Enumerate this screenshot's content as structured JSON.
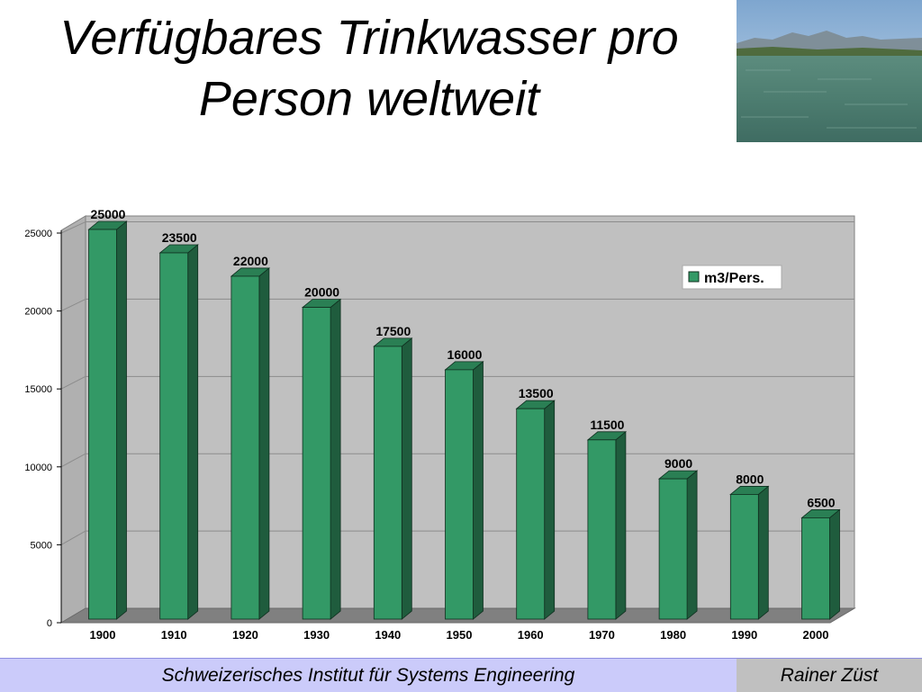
{
  "slide": {
    "title_line1": "Verfügbares Trinkwasser pro",
    "title_line2": "Person weltweit",
    "footer_left": "Schweizerisches Institut für Systems Engineering",
    "footer_right": "Rainer Züst"
  },
  "colors": {
    "bar_front": "#339966",
    "bar_side": "#1f5c3d",
    "bar_top": "#2a7f54",
    "plot_back": "#c0c0c0",
    "plot_floor": "#808080",
    "footer_left_bg": "#cbcbfa",
    "footer_right_bg": "#c0c0c0"
  },
  "chart_data": {
    "type": "bar",
    "title": "",
    "xlabel": "",
    "ylabel": "",
    "categories": [
      "1900",
      "1910",
      "1920",
      "1930",
      "1940",
      "1950",
      "1960",
      "1970",
      "1980",
      "1990",
      "2000"
    ],
    "series": [
      {
        "name": "m3/Pers.",
        "values": [
          25000,
          23500,
          22000,
          20000,
          17500,
          16000,
          13500,
          11500,
          9000,
          8000,
          6500
        ]
      }
    ],
    "ylim": [
      0,
      25000
    ],
    "yticks": [
      0,
      5000,
      10000,
      15000,
      20000,
      25000
    ],
    "data_labels": [
      "25000",
      "23500",
      "22000",
      "20000",
      "17500",
      "16000",
      "13500",
      "11500",
      "9000",
      "8000",
      "6500"
    ],
    "legend_position": "top-right",
    "grid": true,
    "style": "3d-column"
  }
}
